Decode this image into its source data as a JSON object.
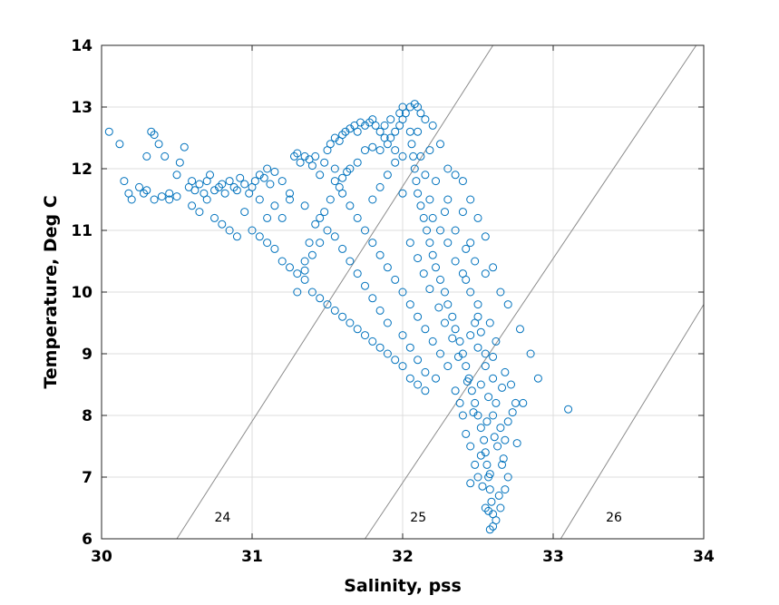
{
  "chart_data": {
    "type": "scatter",
    "xlabel": "Salinity, pss",
    "ylabel": "Temperature, Deg C",
    "xlim": [
      30,
      34
    ],
    "ylim": [
      6,
      14
    ],
    "x_ticks": [
      "30",
      "31",
      "32",
      "33",
      "34"
    ],
    "y_ticks": [
      "6",
      "7",
      "8",
      "9",
      "10",
      "11",
      "12",
      "13",
      "14"
    ],
    "grid": true,
    "marker": "open-circle",
    "marker_color": "#0072BD",
    "contour_color": "#8c8c8c",
    "density_contours": [
      {
        "label": "24",
        "line": [
          [
            30.5,
            6.0
          ],
          [
            32.6,
            14.0
          ]
        ],
        "label_at": [
          30.75,
          6.28
        ]
      },
      {
        "label": "25",
        "line": [
          [
            31.75,
            6.0
          ],
          [
            33.95,
            14.0
          ]
        ],
        "label_at": [
          32.05,
          6.28
        ]
      },
      {
        "label": "26",
        "line": [
          [
            33.05,
            6.0
          ],
          [
            34.0,
            9.8
          ]
        ],
        "label_at": [
          33.35,
          6.28
        ]
      }
    ],
    "points": [
      [
        30.05,
        12.6
      ],
      [
        30.12,
        12.4
      ],
      [
        30.15,
        11.8
      ],
      [
        30.18,
        11.6
      ],
      [
        30.2,
        11.5
      ],
      [
        30.25,
        11.7
      ],
      [
        30.28,
        11.6
      ],
      [
        30.3,
        12.2
      ],
      [
        30.33,
        12.6
      ],
      [
        30.35,
        12.55
      ],
      [
        30.38,
        12.4
      ],
      [
        30.3,
        11.65
      ],
      [
        30.35,
        11.5
      ],
      [
        30.4,
        11.55
      ],
      [
        30.45,
        11.6
      ],
      [
        30.42,
        12.2
      ],
      [
        30.45,
        11.5
      ],
      [
        30.5,
        11.55
      ],
      [
        30.52,
        12.1
      ],
      [
        30.55,
        12.35
      ],
      [
        30.5,
        11.9
      ],
      [
        30.58,
        11.7
      ],
      [
        30.6,
        11.8
      ],
      [
        30.62,
        11.65
      ],
      [
        30.65,
        11.75
      ],
      [
        30.68,
        11.6
      ],
      [
        30.7,
        11.8
      ],
      [
        30.72,
        11.9
      ],
      [
        30.75,
        11.65
      ],
      [
        30.78,
        11.7
      ],
      [
        30.8,
        11.75
      ],
      [
        30.82,
        11.6
      ],
      [
        30.85,
        11.8
      ],
      [
        30.88,
        11.7
      ],
      [
        30.9,
        11.65
      ],
      [
        30.92,
        11.85
      ],
      [
        30.95,
        11.75
      ],
      [
        30.98,
        11.6
      ],
      [
        31.0,
        11.7
      ],
      [
        31.02,
        11.8
      ],
      [
        31.05,
        11.9
      ],
      [
        31.08,
        11.85
      ],
      [
        31.1,
        12.0
      ],
      [
        31.12,
        11.75
      ],
      [
        31.15,
        11.95
      ],
      [
        30.6,
        11.4
      ],
      [
        30.65,
        11.3
      ],
      [
        30.7,
        11.5
      ],
      [
        30.75,
        11.2
      ],
      [
        30.8,
        11.1
      ],
      [
        30.85,
        11.0
      ],
      [
        30.9,
        10.9
      ],
      [
        30.95,
        11.3
      ],
      [
        31.0,
        11.0
      ],
      [
        31.05,
        10.9
      ],
      [
        31.1,
        10.8
      ],
      [
        31.15,
        10.7
      ],
      [
        31.2,
        10.5
      ],
      [
        31.25,
        10.4
      ],
      [
        31.3,
        10.3
      ],
      [
        31.35,
        10.35
      ],
      [
        31.2,
        11.2
      ],
      [
        31.25,
        11.5
      ],
      [
        31.28,
        12.2
      ],
      [
        31.3,
        12.25
      ],
      [
        31.32,
        12.1
      ],
      [
        31.35,
        12.2
      ],
      [
        31.38,
        12.15
      ],
      [
        31.4,
        12.05
      ],
      [
        31.42,
        12.2
      ],
      [
        31.45,
        11.9
      ],
      [
        31.48,
        12.1
      ],
      [
        31.5,
        12.3
      ],
      [
        31.52,
        12.4
      ],
      [
        31.55,
        12.5
      ],
      [
        31.58,
        12.45
      ],
      [
        31.6,
        12.55
      ],
      [
        31.62,
        12.6
      ],
      [
        31.65,
        12.65
      ],
      [
        31.68,
        12.7
      ],
      [
        31.7,
        12.6
      ],
      [
        31.72,
        12.75
      ],
      [
        31.75,
        12.7
      ],
      [
        31.78,
        12.75
      ],
      [
        31.8,
        12.8
      ],
      [
        31.82,
        12.7
      ],
      [
        31.85,
        12.6
      ],
      [
        31.88,
        12.5
      ],
      [
        31.9,
        12.4
      ],
      [
        31.92,
        12.5
      ],
      [
        31.95,
        12.6
      ],
      [
        31.98,
        12.7
      ],
      [
        32.0,
        12.8
      ],
      [
        32.02,
        12.9
      ],
      [
        32.05,
        13.0
      ],
      [
        32.08,
        13.05
      ],
      [
        32.1,
        13.0
      ],
      [
        32.12,
        12.9
      ],
      [
        32.05,
        12.6
      ],
      [
        32.06,
        12.4
      ],
      [
        32.07,
        12.2
      ],
      [
        32.08,
        12.0
      ],
      [
        32.09,
        11.8
      ],
      [
        32.1,
        11.6
      ],
      [
        32.12,
        11.4
      ],
      [
        32.14,
        11.2
      ],
      [
        32.16,
        11.0
      ],
      [
        32.18,
        10.8
      ],
      [
        32.2,
        10.6
      ],
      [
        32.22,
        10.4
      ],
      [
        32.25,
        10.2
      ],
      [
        32.28,
        10.0
      ],
      [
        32.3,
        9.8
      ],
      [
        32.33,
        9.6
      ],
      [
        32.35,
        9.4
      ],
      [
        32.38,
        9.2
      ],
      [
        32.4,
        9.0
      ],
      [
        32.42,
        8.8
      ],
      [
        32.44,
        8.6
      ],
      [
        32.46,
        8.4
      ],
      [
        32.48,
        8.2
      ],
      [
        32.5,
        8.0
      ],
      [
        32.52,
        7.8
      ],
      [
        32.54,
        7.6
      ],
      [
        32.55,
        7.4
      ],
      [
        32.56,
        7.2
      ],
      [
        32.57,
        7.0
      ],
      [
        32.58,
        6.8
      ],
      [
        32.59,
        6.6
      ],
      [
        32.6,
        6.4
      ],
      [
        32.6,
        6.2
      ],
      [
        32.58,
        6.15
      ],
      [
        32.62,
        6.3
      ],
      [
        32.55,
        6.5
      ],
      [
        32.64,
        6.7
      ],
      [
        32.5,
        7.0
      ],
      [
        32.66,
        7.2
      ],
      [
        32.45,
        7.5
      ],
      [
        32.68,
        7.6
      ],
      [
        32.4,
        8.0
      ],
      [
        32.62,
        8.2
      ],
      [
        32.35,
        8.4
      ],
      [
        32.6,
        8.6
      ],
      [
        32.3,
        8.8
      ],
      [
        32.55,
        9.0
      ],
      [
        32.25,
        9.0
      ],
      [
        32.2,
        9.2
      ],
      [
        32.15,
        9.4
      ],
      [
        32.1,
        9.6
      ],
      [
        32.05,
        9.8
      ],
      [
        32.0,
        10.0
      ],
      [
        31.95,
        10.2
      ],
      [
        31.9,
        10.4
      ],
      [
        31.85,
        10.6
      ],
      [
        31.8,
        10.8
      ],
      [
        31.75,
        11.0
      ],
      [
        31.7,
        11.2
      ],
      [
        31.65,
        11.4
      ],
      [
        31.6,
        11.6
      ],
      [
        31.55,
        11.8
      ],
      [
        31.5,
        11.0
      ],
      [
        31.45,
        10.8
      ],
      [
        31.4,
        10.6
      ],
      [
        31.35,
        10.2
      ],
      [
        31.4,
        10.0
      ],
      [
        31.45,
        9.9
      ],
      [
        31.5,
        9.8
      ],
      [
        31.55,
        9.7
      ],
      [
        31.6,
        9.6
      ],
      [
        31.65,
        9.5
      ],
      [
        31.7,
        9.4
      ],
      [
        31.75,
        9.3
      ],
      [
        31.8,
        9.2
      ],
      [
        31.85,
        9.1
      ],
      [
        31.9,
        9.0
      ],
      [
        31.95,
        8.9
      ],
      [
        32.0,
        8.8
      ],
      [
        32.05,
        8.6
      ],
      [
        32.1,
        8.5
      ],
      [
        32.15,
        8.4
      ],
      [
        31.3,
        10.0
      ],
      [
        31.35,
        10.5
      ],
      [
        31.38,
        10.8
      ],
      [
        31.42,
        11.1
      ],
      [
        31.48,
        11.3
      ],
      [
        31.52,
        11.5
      ],
      [
        31.58,
        11.7
      ],
      [
        31.63,
        11.95
      ],
      [
        31.7,
        12.1
      ],
      [
        31.75,
        12.3
      ],
      [
        31.8,
        12.35
      ],
      [
        31.85,
        12.3
      ],
      [
        31.55,
        12.0
      ],
      [
        31.6,
        11.85
      ],
      [
        31.65,
        12.0
      ],
      [
        32.0,
        11.6
      ],
      [
        32.1,
        12.6
      ],
      [
        32.12,
        12.2
      ],
      [
        32.15,
        11.9
      ],
      [
        32.18,
        11.5
      ],
      [
        32.2,
        11.2
      ],
      [
        32.25,
        11.0
      ],
      [
        32.3,
        10.8
      ],
      [
        32.35,
        10.5
      ],
      [
        32.4,
        10.3
      ],
      [
        32.45,
        10.0
      ],
      [
        32.5,
        9.8
      ],
      [
        32.48,
        9.5
      ],
      [
        32.45,
        9.3
      ],
      [
        32.5,
        9.1
      ],
      [
        32.55,
        8.8
      ],
      [
        32.52,
        8.5
      ],
      [
        32.57,
        8.3
      ],
      [
        32.6,
        8.0
      ],
      [
        32.65,
        7.8
      ],
      [
        32.63,
        7.5
      ],
      [
        32.67,
        7.3
      ],
      [
        32.7,
        7.0
      ],
      [
        32.68,
        6.8
      ],
      [
        32.65,
        6.5
      ],
      [
        32.45,
        6.9
      ],
      [
        32.48,
        7.2
      ],
      [
        32.42,
        7.7
      ],
      [
        32.38,
        8.2
      ],
      [
        32.58,
        7.05
      ],
      [
        32.53,
        6.85
      ],
      [
        32.57,
        6.45
      ],
      [
        32.52,
        7.35
      ],
      [
        32.61,
        7.65
      ],
      [
        32.56,
        7.9
      ],
      [
        32.47,
        8.05
      ],
      [
        32.43,
        8.55
      ],
      [
        32.37,
        8.95
      ],
      [
        32.33,
        9.25
      ],
      [
        32.28,
        9.5
      ],
      [
        32.24,
        9.75
      ],
      [
        32.18,
        10.05
      ],
      [
        32.14,
        10.3
      ],
      [
        32.1,
        10.55
      ],
      [
        32.05,
        10.8
      ],
      [
        32.7,
        7.9
      ],
      [
        32.75,
        8.2
      ],
      [
        32.72,
        8.5
      ],
      [
        32.68,
        8.7
      ],
      [
        32.62,
        9.2
      ],
      [
        32.58,
        9.5
      ],
      [
        32.5,
        9.6
      ],
      [
        32.55,
        10.3
      ],
      [
        32.48,
        10.5
      ],
      [
        32.42,
        10.7
      ],
      [
        32.35,
        11.0
      ],
      [
        32.28,
        11.3
      ],
      [
        32.22,
        11.8
      ],
      [
        32.18,
        12.3
      ],
      [
        32.15,
        12.8
      ],
      [
        32.0,
        12.2
      ],
      [
        31.95,
        12.3
      ],
      [
        31.9,
        11.9
      ],
      [
        31.85,
        11.7
      ],
      [
        31.8,
        11.5
      ],
      [
        32.45,
        10.8
      ],
      [
        32.4,
        11.3
      ],
      [
        32.3,
        11.5
      ],
      [
        32.35,
        11.9
      ],
      [
        32.42,
        10.2
      ],
      [
        32.52,
        9.35
      ],
      [
        32.6,
        8.95
      ],
      [
        32.66,
        8.45
      ],
      [
        32.73,
        8.05
      ],
      [
        32.76,
        7.55
      ],
      [
        32.0,
        9.3
      ],
      [
        32.05,
        9.1
      ],
      [
        32.1,
        8.9
      ],
      [
        32.15,
        8.7
      ],
      [
        32.22,
        8.6
      ],
      [
        31.9,
        9.5
      ],
      [
        31.85,
        9.7
      ],
      [
        31.8,
        9.9
      ],
      [
        31.75,
        10.1
      ],
      [
        31.7,
        10.3
      ],
      [
        31.65,
        10.5
      ],
      [
        31.6,
        10.7
      ],
      [
        31.55,
        10.9
      ],
      [
        31.45,
        11.2
      ],
      [
        31.35,
        11.4
      ],
      [
        31.25,
        11.6
      ],
      [
        31.2,
        11.8
      ],
      [
        31.15,
        11.4
      ],
      [
        31.1,
        11.2
      ],
      [
        31.05,
        11.5
      ],
      [
        33.1,
        8.1
      ],
      [
        32.8,
        8.2
      ],
      [
        32.9,
        8.6
      ],
      [
        32.85,
        9.0
      ],
      [
        32.78,
        9.4
      ],
      [
        32.7,
        9.8
      ],
      [
        32.65,
        10.0
      ],
      [
        32.6,
        10.4
      ],
      [
        32.55,
        10.9
      ],
      [
        32.5,
        11.2
      ],
      [
        32.45,
        11.5
      ],
      [
        32.4,
        11.8
      ],
      [
        32.3,
        12.0
      ],
      [
        32.25,
        12.4
      ],
      [
        32.2,
        12.7
      ],
      [
        32.0,
        13.0
      ],
      [
        31.98,
        12.9
      ],
      [
        31.92,
        12.8
      ],
      [
        31.88,
        12.7
      ],
      [
        31.95,
        12.1
      ]
    ]
  }
}
